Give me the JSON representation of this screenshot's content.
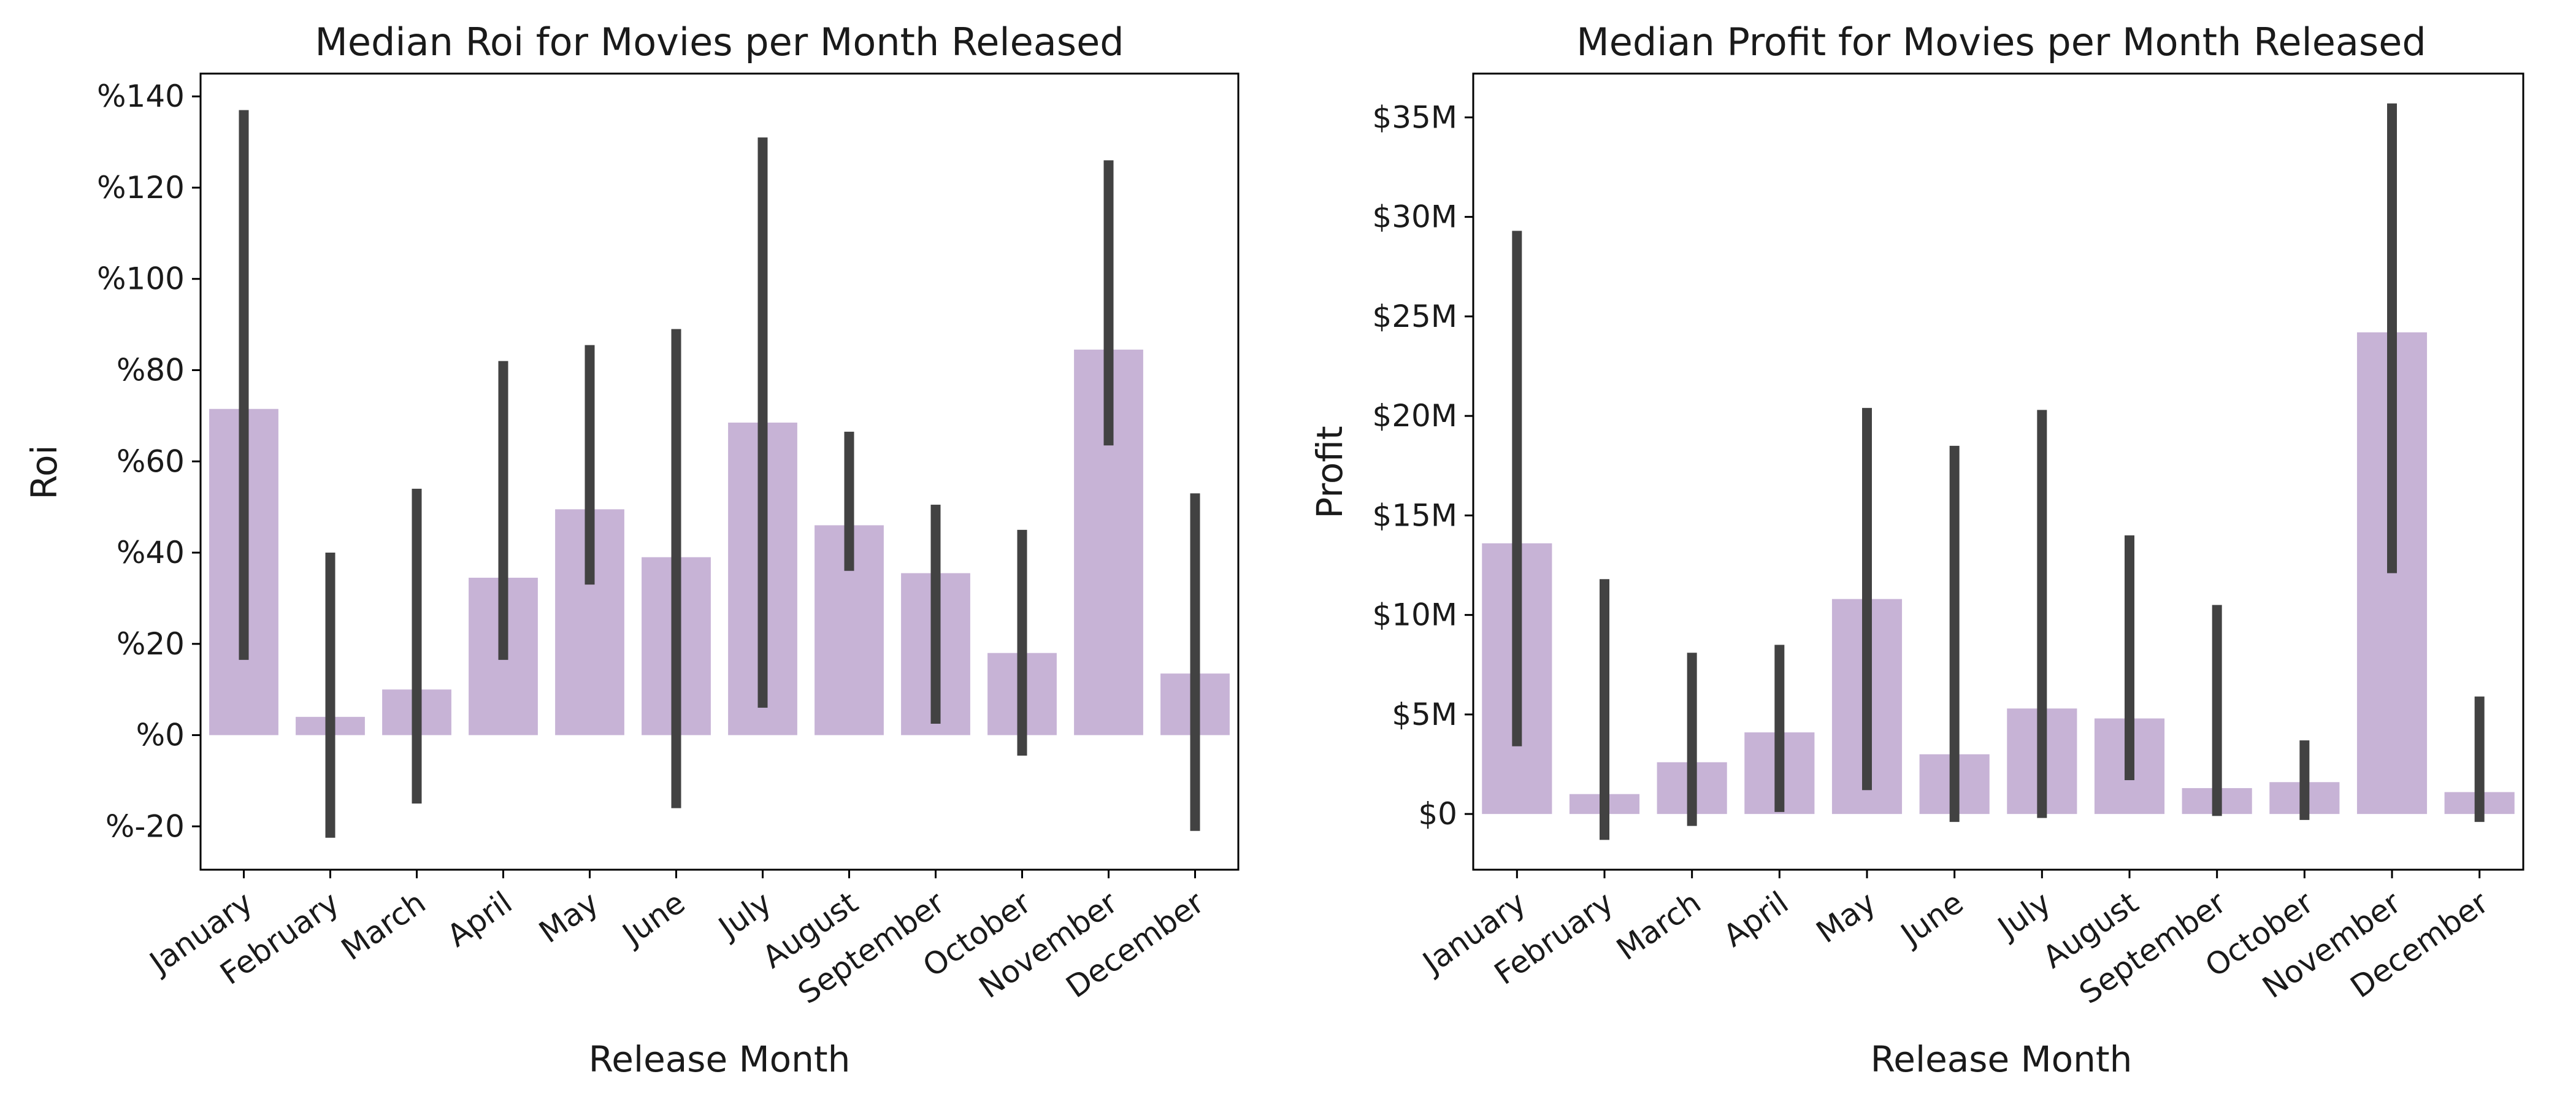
{
  "chart_data": [
    {
      "type": "bar",
      "title": "Median Roi for Movies per Month Released",
      "xlabel": "Release Month",
      "ylabel": "Roi",
      "categories": [
        "January",
        "February",
        "March",
        "April",
        "May",
        "June",
        "July",
        "August",
        "September",
        "October",
        "November",
        "December"
      ],
      "values": [
        71.5,
        4,
        10,
        34.5,
        49.5,
        39,
        68.5,
        46,
        35.5,
        18,
        84.5,
        13.5
      ],
      "error_low": [
        16.5,
        -22.5,
        -15,
        16.5,
        33,
        -16,
        6,
        36,
        2.5,
        -4.5,
        63.5,
        -21
      ],
      "error_high": [
        137,
        40,
        54,
        82,
        85.5,
        89,
        131,
        66.5,
        50.5,
        45,
        126,
        53
      ],
      "ylim": [
        -29.5,
        145
      ],
      "yticks": [
        -20,
        0,
        20,
        40,
        60,
        80,
        100,
        120,
        140
      ],
      "ytick_labels": [
        "%-20",
        "%0",
        "%20",
        "%40",
        "%60",
        "%80",
        "%100",
        "%120",
        "%140"
      ],
      "grid": false,
      "bar_color": "#c7b3d6",
      "error_color": "#424242"
    },
    {
      "type": "bar",
      "title": "Median Profit for Movies per Month Released",
      "xlabel": "Release Month",
      "ylabel": "Profit",
      "categories": [
        "January",
        "February",
        "March",
        "April",
        "May",
        "June",
        "July",
        "August",
        "September",
        "October",
        "November",
        "December"
      ],
      "values": [
        13.6,
        1.0,
        2.6,
        4.1,
        10.8,
        3.0,
        5.3,
        4.8,
        1.3,
        1.6,
        24.2,
        1.1
      ],
      "error_low": [
        3.4,
        -1.3,
        -0.6,
        0.1,
        1.2,
        -0.4,
        -0.2,
        1.7,
        -0.1,
        -0.3,
        12.1,
        -0.4
      ],
      "error_high": [
        29.3,
        11.8,
        8.1,
        8.5,
        20.4,
        18.5,
        20.3,
        14.0,
        10.5,
        3.7,
        35.7,
        5.9
      ],
      "ylim": [
        -2.8,
        37.2
      ],
      "yticks": [
        0,
        5,
        10,
        15,
        20,
        25,
        30,
        35
      ],
      "ytick_labels": [
        "$0",
        "$5M",
        "$10M",
        "$15M",
        "$20M",
        "$25M",
        "$30M",
        "$35M"
      ],
      "grid": false,
      "bar_color": "#c7b3d6",
      "error_color": "#424242"
    }
  ]
}
